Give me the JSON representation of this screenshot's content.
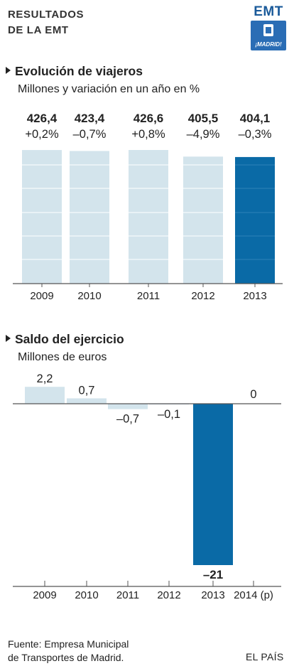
{
  "header": {
    "title_line1": "RESULTADOS",
    "title_line2": "DE LA EMT",
    "logo_text": "EMT",
    "logo_subtext": "¡MADRID!",
    "logo_icon": "madrid-crest-icon"
  },
  "colors": {
    "light_bar": "#d3e4ec",
    "highlight_bar": "#0a6aa6",
    "grid": "#ffffff",
    "axis": "#555555"
  },
  "chart_data": [
    {
      "type": "bar",
      "title": "Evolución de viajeros",
      "subtitle": "Millones y variación en un año en %",
      "categories": [
        "2009",
        "2010",
        "2011",
        "2012",
        "2013"
      ],
      "values": [
        426.4,
        423.4,
        426.6,
        405.5,
        404.1
      ],
      "value_labels": [
        "426,4",
        "423,4",
        "426,6",
        "405,5",
        "404,1"
      ],
      "change_labels": [
        "+0,2%",
        "–0,7%",
        "+0,8%",
        "–4,9%",
        "–0,3%"
      ],
      "highlight_index": 4,
      "ylim": [
        0,
        426.6
      ],
      "grid": true,
      "legend": "none"
    },
    {
      "type": "bar",
      "title": "Saldo del ejercicio",
      "subtitle": "Millones de euros",
      "categories": [
        "2009",
        "2010",
        "2011",
        "2012",
        "2013",
        "2014 (p)"
      ],
      "values": [
        2.2,
        0.7,
        -0.7,
        -0.1,
        -21,
        0
      ],
      "value_labels": [
        "2,2",
        "0,7",
        "–0,7",
        "–0,1",
        "–21",
        "0"
      ],
      "highlight_index": 4,
      "ylim": [
        -21,
        2.2
      ],
      "grid": false,
      "legend": "none"
    }
  ],
  "footer": {
    "source_line1": "Fuente: Empresa Municipal",
    "source_line2": "de Transportes de Madrid.",
    "brand": "EL PAÍS"
  }
}
